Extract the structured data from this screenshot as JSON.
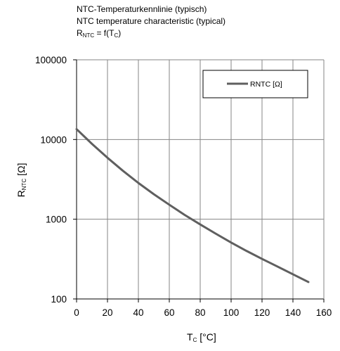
{
  "title": {
    "line1": "NTC-Temperaturkennlinie (typisch)",
    "line2": "NTC temperature characteristic (typical)",
    "line3": {
      "main": "R",
      "sub": "NTC",
      "mid": " = f(T",
      "sub2": "C",
      "end": ")"
    }
  },
  "colors": {
    "series": "#5f5f5f",
    "grid": "#868686",
    "background": "#ffffff",
    "text": "#000000"
  },
  "chart_data": {
    "type": "line",
    "xlabel": {
      "main": "T",
      "sub": "C",
      "end": " [°C]"
    },
    "ylabel": {
      "main": "R",
      "sub": "NTC",
      "end": " [Ω]"
    },
    "xlim": [
      0,
      160
    ],
    "ylim": [
      100,
      100000
    ],
    "y_scale": "log",
    "grid": true,
    "legend_position": "top-right",
    "x_ticks": [
      "0",
      "20",
      "40",
      "60",
      "80",
      "100",
      "120",
      "140",
      "160"
    ],
    "y_ticks": [
      "100",
      "1000",
      "10000",
      "100000"
    ],
    "series": [
      {
        "name": "RNTC [Ω]",
        "x": [
          0,
          10,
          20,
          30,
          40,
          50,
          60,
          70,
          80,
          90,
          100,
          110,
          120,
          130,
          140,
          150
        ],
        "y": [
          13500,
          8800,
          5900,
          4050,
          2850,
          2060,
          1520,
          1130,
          860,
          660,
          510,
          400,
          318,
          255,
          204,
          163
        ]
      }
    ]
  }
}
